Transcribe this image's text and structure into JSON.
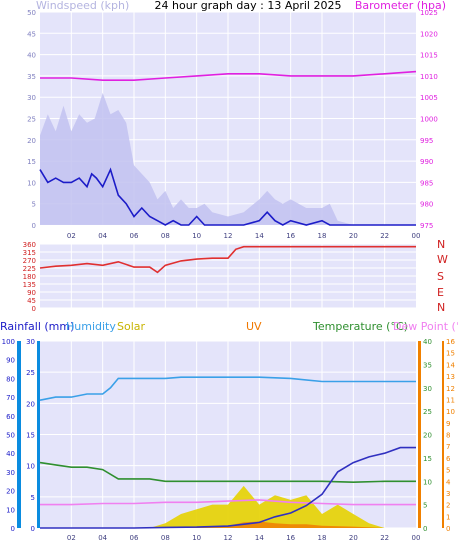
{
  "header": {
    "windspeed_label": "Windspeed (kph)",
    "title": "24 hour graph day : 13 April 2025",
    "barometer_label": "Barometer (hpa)"
  },
  "mid_header": {
    "rainfall_label": "Rainfall (mm)",
    "humidity_label": "Humidity",
    "solar_label": "Solar",
    "uv_label": "UV",
    "temperature_label": "Temperature (°C)",
    "dewpoint_label": "Dew Point (°C)"
  },
  "compass": [
    "N",
    "W",
    "S",
    "E",
    "N"
  ],
  "colors": {
    "panel_bg": "#e4e4fa",
    "grid": "#ffffff",
    "wind_gust": "#c2c2f0",
    "wind_avg": "#1c1cc8",
    "barometer": "#e020e0",
    "direction": "#e03030",
    "humidity": "#3aa0e8",
    "temperature": "#2f8f2f",
    "dewpoint": "#f080f0",
    "rain": "#3030c0",
    "solar": "#e6d200",
    "uv": "#f07800",
    "axis_blue": "#0a8ce0",
    "axis_orange": "#f08000"
  },
  "chart_data": [
    {
      "type": "line",
      "panel": "wind_barometer",
      "x_tick_labels": [
        "02",
        "04",
        "06",
        "08",
        "10",
        "12",
        "14",
        "16",
        "18",
        "20",
        "22",
        "00"
      ],
      "left_axis": {
        "ticks": [
          "0",
          "5",
          "10",
          "15",
          "20",
          "25",
          "30",
          "35",
          "40",
          "45",
          "50"
        ],
        "ylim": [
          0,
          50
        ]
      },
      "right_axis": {
        "ticks": [
          "975",
          "980",
          "985",
          "990",
          "995",
          "1000",
          "1005",
          "1010",
          "1015",
          "1020",
          "1025"
        ],
        "ylim": [
          975,
          1025
        ]
      },
      "xlim": [
        0,
        24
      ],
      "series": [
        {
          "name": "Windspeed (kph)",
          "role": "avg",
          "x": [
            0,
            0.5,
            1,
            1.5,
            2,
            2.5,
            3,
            3.3,
            3.6,
            4,
            4.5,
            5,
            5.5,
            6,
            6.5,
            7,
            7.5,
            8,
            8.5,
            9,
            9.5,
            10,
            10.5,
            11,
            12,
            13,
            14,
            14.5,
            15,
            15.5,
            16,
            17,
            18,
            18.5,
            19,
            20,
            21,
            22,
            23,
            24
          ],
          "values": [
            13,
            10,
            11,
            10,
            10,
            11,
            9,
            12,
            11,
            9,
            13,
            7,
            5,
            2,
            4,
            2,
            1,
            0,
            1,
            0,
            0,
            2,
            0,
            0,
            0,
            0,
            1,
            3,
            1,
            0,
            1,
            0,
            1,
            0,
            0,
            0,
            0,
            0,
            0,
            0
          ]
        },
        {
          "name": "Windspeed gust",
          "role": "gust",
          "x": [
            0,
            0.5,
            1,
            1.5,
            2,
            2.5,
            3,
            3.5,
            4,
            4.5,
            5,
            5.5,
            6,
            6.5,
            7,
            7.5,
            8,
            8.5,
            9,
            9.5,
            10,
            10.5,
            11,
            12,
            13,
            14,
            14.5,
            15,
            15.5,
            16,
            17,
            18,
            18.5,
            19,
            20,
            21,
            22,
            23,
            24
          ],
          "values": [
            21,
            26,
            22,
            28,
            22,
            26,
            24,
            25,
            31,
            26,
            27,
            24,
            14,
            12,
            10,
            6,
            8,
            4,
            6,
            4,
            4,
            5,
            3,
            2,
            3,
            6,
            8,
            6,
            5,
            6,
            4,
            4,
            5,
            1,
            0,
            0,
            0,
            0,
            0
          ]
        },
        {
          "name": "Barometer (hpa)",
          "role": "pressure",
          "x": [
            0,
            2,
            4,
            6,
            8,
            10,
            12,
            14,
            16,
            18,
            20,
            22,
            24
          ],
          "values": [
            1009.5,
            1009.5,
            1009,
            1009,
            1009.5,
            1010,
            1010.5,
            1010.5,
            1010,
            1010,
            1010,
            1010.5,
            1011
          ]
        }
      ]
    },
    {
      "type": "line",
      "panel": "wind_direction",
      "left_axis": {
        "ticks": [
          "0",
          "45",
          "90",
          "135",
          "180",
          "225",
          "270",
          "315",
          "360"
        ],
        "ylim": [
          0,
          360
        ]
      },
      "xlim": [
        0,
        24
      ],
      "series": [
        {
          "name": "Wind direction",
          "x": [
            0,
            1,
            2,
            3,
            4,
            5,
            6,
            7,
            7.5,
            8,
            9,
            10,
            11,
            12,
            12.5,
            13,
            14,
            16,
            18,
            20,
            22,
            24
          ],
          "values": [
            225,
            235,
            240,
            250,
            240,
            260,
            230,
            230,
            200,
            240,
            265,
            275,
            280,
            280,
            330,
            345,
            345,
            345,
            345,
            345,
            345,
            345
          ]
        }
      ]
    },
    {
      "type": "line",
      "panel": "rain_humidity_temp",
      "x_tick_labels": [
        "02",
        "04",
        "06",
        "08",
        "10",
        "12",
        "14",
        "16",
        "18",
        "20",
        "22",
        "00"
      ],
      "rain_axis": {
        "ticks": [
          "0",
          "10",
          "20",
          "30",
          "40",
          "50",
          "60",
          "70",
          "80",
          "90",
          "100"
        ],
        "ylim": [
          0,
          100
        ]
      },
      "humidity_axis": {
        "ticks": [
          "0",
          "5",
          "10",
          "15",
          "20",
          "25",
          "30"
        ],
        "ylim": [
          0,
          30
        ]
      },
      "temp_axis": {
        "ticks": [
          "0",
          "5",
          "10",
          "15",
          "20",
          "25",
          "30",
          "35",
          "40"
        ],
        "ylim": [
          0,
          40
        ]
      },
      "dew_axis": {
        "ticks": [
          "0",
          "1",
          "2",
          "3",
          "4",
          "5",
          "6",
          "7",
          "8",
          "9",
          "10",
          "11",
          "12",
          "13",
          "14",
          "15",
          "16"
        ],
        "ylim": [
          0,
          16
        ]
      },
      "xlim": [
        0,
        24
      ],
      "series": [
        {
          "name": "Humidity",
          "x": [
            0,
            1,
            2,
            3,
            4,
            4.5,
            5,
            6,
            7,
            8,
            9,
            10,
            12,
            14,
            16,
            18,
            20,
            22,
            24
          ],
          "values": [
            20.5,
            21,
            21,
            21.5,
            21.5,
            22.5,
            24,
            24,
            24,
            24,
            24.2,
            24.2,
            24.2,
            24.2,
            24,
            23.5,
            23.5,
            23.5,
            23.5
          ]
        },
        {
          "name": "Temperature (°C)",
          "x": [
            0,
            1,
            2,
            3,
            4,
            5,
            6,
            7,
            8,
            10,
            12,
            14,
            16,
            18,
            20,
            22,
            24
          ],
          "values": [
            14,
            13.5,
            13,
            13,
            12.5,
            10.5,
            10.5,
            10.5,
            10,
            10,
            10,
            10,
            10,
            10,
            9.8,
            10,
            10
          ]
        },
        {
          "name": "Dew Point (°C)",
          "x": [
            0,
            2,
            4,
            6,
            8,
            10,
            12,
            14,
            16,
            18,
            20,
            22,
            24
          ],
          "values": [
            2,
            2,
            2.1,
            2.1,
            2.2,
            2.2,
            2.3,
            2.4,
            2.2,
            2.1,
            2,
            2,
            2
          ]
        },
        {
          "name": "Rainfall (mm)",
          "x": [
            0,
            6,
            8,
            10,
            12,
            14,
            15,
            16,
            17,
            18,
            19,
            20,
            21,
            22,
            23,
            24
          ],
          "values": [
            0,
            0,
            0.3,
            0.5,
            1,
            3,
            6,
            8,
            12,
            18,
            30,
            35,
            38,
            40,
            43,
            43
          ]
        },
        {
          "name": "Solar",
          "x": [
            7,
            8,
            9,
            10,
            11,
            12,
            13,
            14,
            15,
            16,
            17,
            18,
            19,
            20,
            21,
            22
          ],
          "values": [
            0,
            1,
            3,
            4,
            5,
            5,
            9,
            5,
            7,
            6,
            7,
            3,
            5,
            3,
            1,
            0
          ]
        },
        {
          "name": "UV",
          "x": [
            8,
            10,
            12,
            13,
            14,
            15,
            16,
            17,
            18,
            20,
            22
          ],
          "values": [
            0,
            0.2,
            0.5,
            1.2,
            1.4,
            1,
            0.8,
            0.8,
            0.5,
            0.3,
            0
          ]
        }
      ]
    }
  ]
}
